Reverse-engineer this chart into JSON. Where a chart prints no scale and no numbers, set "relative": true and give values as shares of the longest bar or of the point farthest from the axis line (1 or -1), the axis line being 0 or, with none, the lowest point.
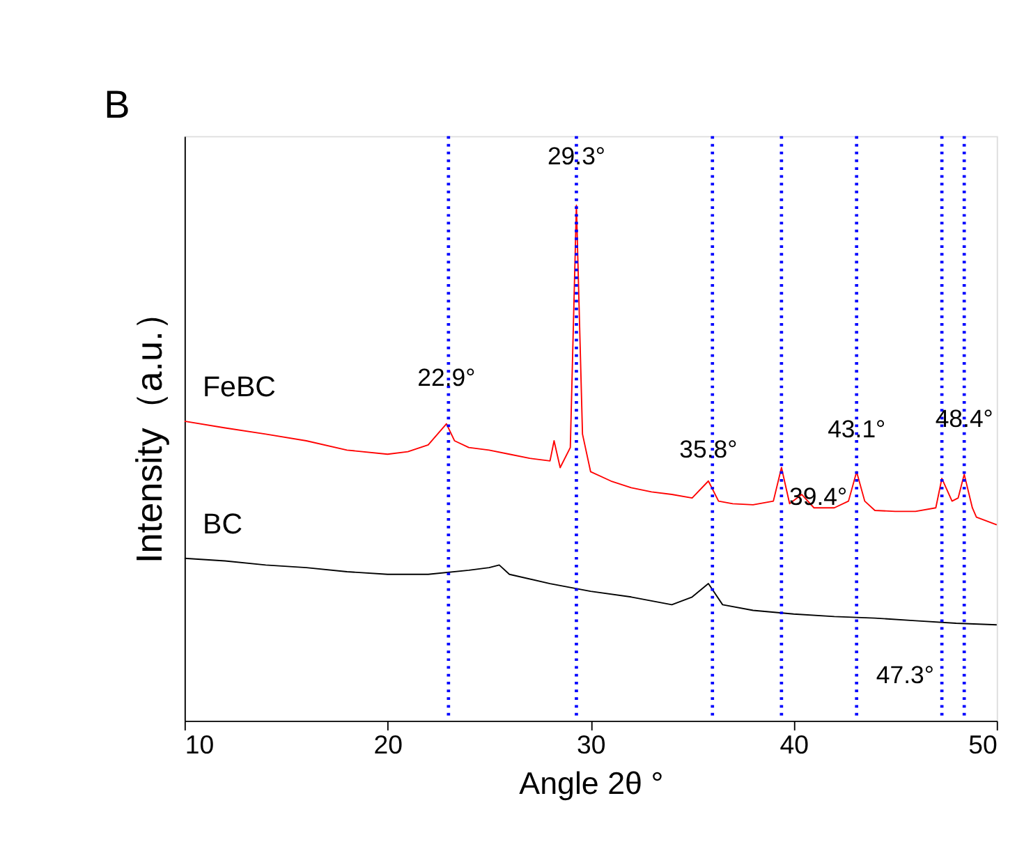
{
  "chart_data": {
    "type": "line",
    "relative": true,
    "xlabel": "Angle 2θ °",
    "ylabel": "Intensity（a.u.）",
    "xlim": [
      10,
      50
    ],
    "xticks": [
      10,
      20,
      30,
      40,
      50
    ],
    "legend": false,
    "grid": false,
    "marker": "none",
    "line_style": "solid",
    "series": [
      {
        "name": "FeBC",
        "color": "#ff0000",
        "x": [
          10,
          12,
          14,
          16,
          18,
          20,
          21,
          22,
          22.9,
          23.3,
          24,
          25,
          26,
          27,
          28,
          28.2,
          28.5,
          29,
          29.3,
          29.6,
          30,
          31,
          32,
          33,
          34,
          35,
          35.8,
          36.3,
          37,
          38,
          39,
          39.4,
          39.8,
          40.4,
          41,
          42,
          42.7,
          43.1,
          43.5,
          44,
          45,
          46,
          47,
          47.3,
          47.8,
          48.1,
          48.4,
          48.8,
          49,
          50
        ],
        "values": [
          0.581,
          0.568,
          0.556,
          0.543,
          0.525,
          0.517,
          0.522,
          0.535,
          0.576,
          0.543,
          0.53,
          0.525,
          0.517,
          0.509,
          0.504,
          0.543,
          0.491,
          0.53,
          1.0,
          0.556,
          0.483,
          0.465,
          0.452,
          0.444,
          0.439,
          0.432,
          0.465,
          0.426,
          0.421,
          0.419,
          0.426,
          0.491,
          0.421,
          0.439,
          0.413,
          0.413,
          0.426,
          0.483,
          0.426,
          0.408,
          0.406,
          0.406,
          0.413,
          0.47,
          0.426,
          0.432,
          0.478,
          0.413,
          0.395,
          0.38
        ]
      },
      {
        "name": "BC",
        "color": "#000000",
        "x": [
          10,
          12,
          14,
          16,
          18,
          20,
          22,
          24,
          25,
          25.5,
          26,
          28,
          30,
          32,
          34,
          35,
          35.8,
          36.5,
          38,
          40,
          42,
          44,
          46,
          48,
          50
        ],
        "values": [
          0.315,
          0.31,
          0.302,
          0.297,
          0.289,
          0.284,
          0.284,
          0.292,
          0.297,
          0.302,
          0.284,
          0.266,
          0.251,
          0.24,
          0.225,
          0.24,
          0.266,
          0.225,
          0.214,
          0.207,
          0.202,
          0.199,
          0.194,
          0.189,
          0.186
        ]
      }
    ],
    "ref_lines": [
      {
        "axis": "x",
        "value": 23.0,
        "color": "#0000ff",
        "line_style": "dotted"
      },
      {
        "axis": "x",
        "value": 29.3,
        "color": "#0000ff",
        "line_style": "dotted"
      },
      {
        "axis": "x",
        "value": 36.0,
        "color": "#0000ff",
        "line_style": "dotted"
      },
      {
        "axis": "x",
        "value": 39.4,
        "color": "#0000ff",
        "line_style": "dotted",
        "label": "39.4°"
      },
      {
        "axis": "x",
        "value": 43.1,
        "color": "#0000ff",
        "line_style": "dotted"
      },
      {
        "axis": "x",
        "value": 47.3,
        "color": "#0000ff",
        "line_style": "dotted",
        "label": "47.3°"
      },
      {
        "axis": "x",
        "value": 48.4,
        "color": "#0000ff",
        "line_style": "dotted"
      }
    ],
    "annotations": [
      "B",
      {
        "text": "22.9°",
        "x": 22.9,
        "y": 0.64
      },
      {
        "text": "29.3°",
        "x": 29.3,
        "y": 1.07
      },
      {
        "text": "35.8°",
        "x": 35.8,
        "y": 0.5
      },
      {
        "text": "43.1°",
        "x": 43.1,
        "y": 0.54
      },
      {
        "text": "48.4°",
        "x": 48.4,
        "y": 0.56
      }
    ]
  }
}
